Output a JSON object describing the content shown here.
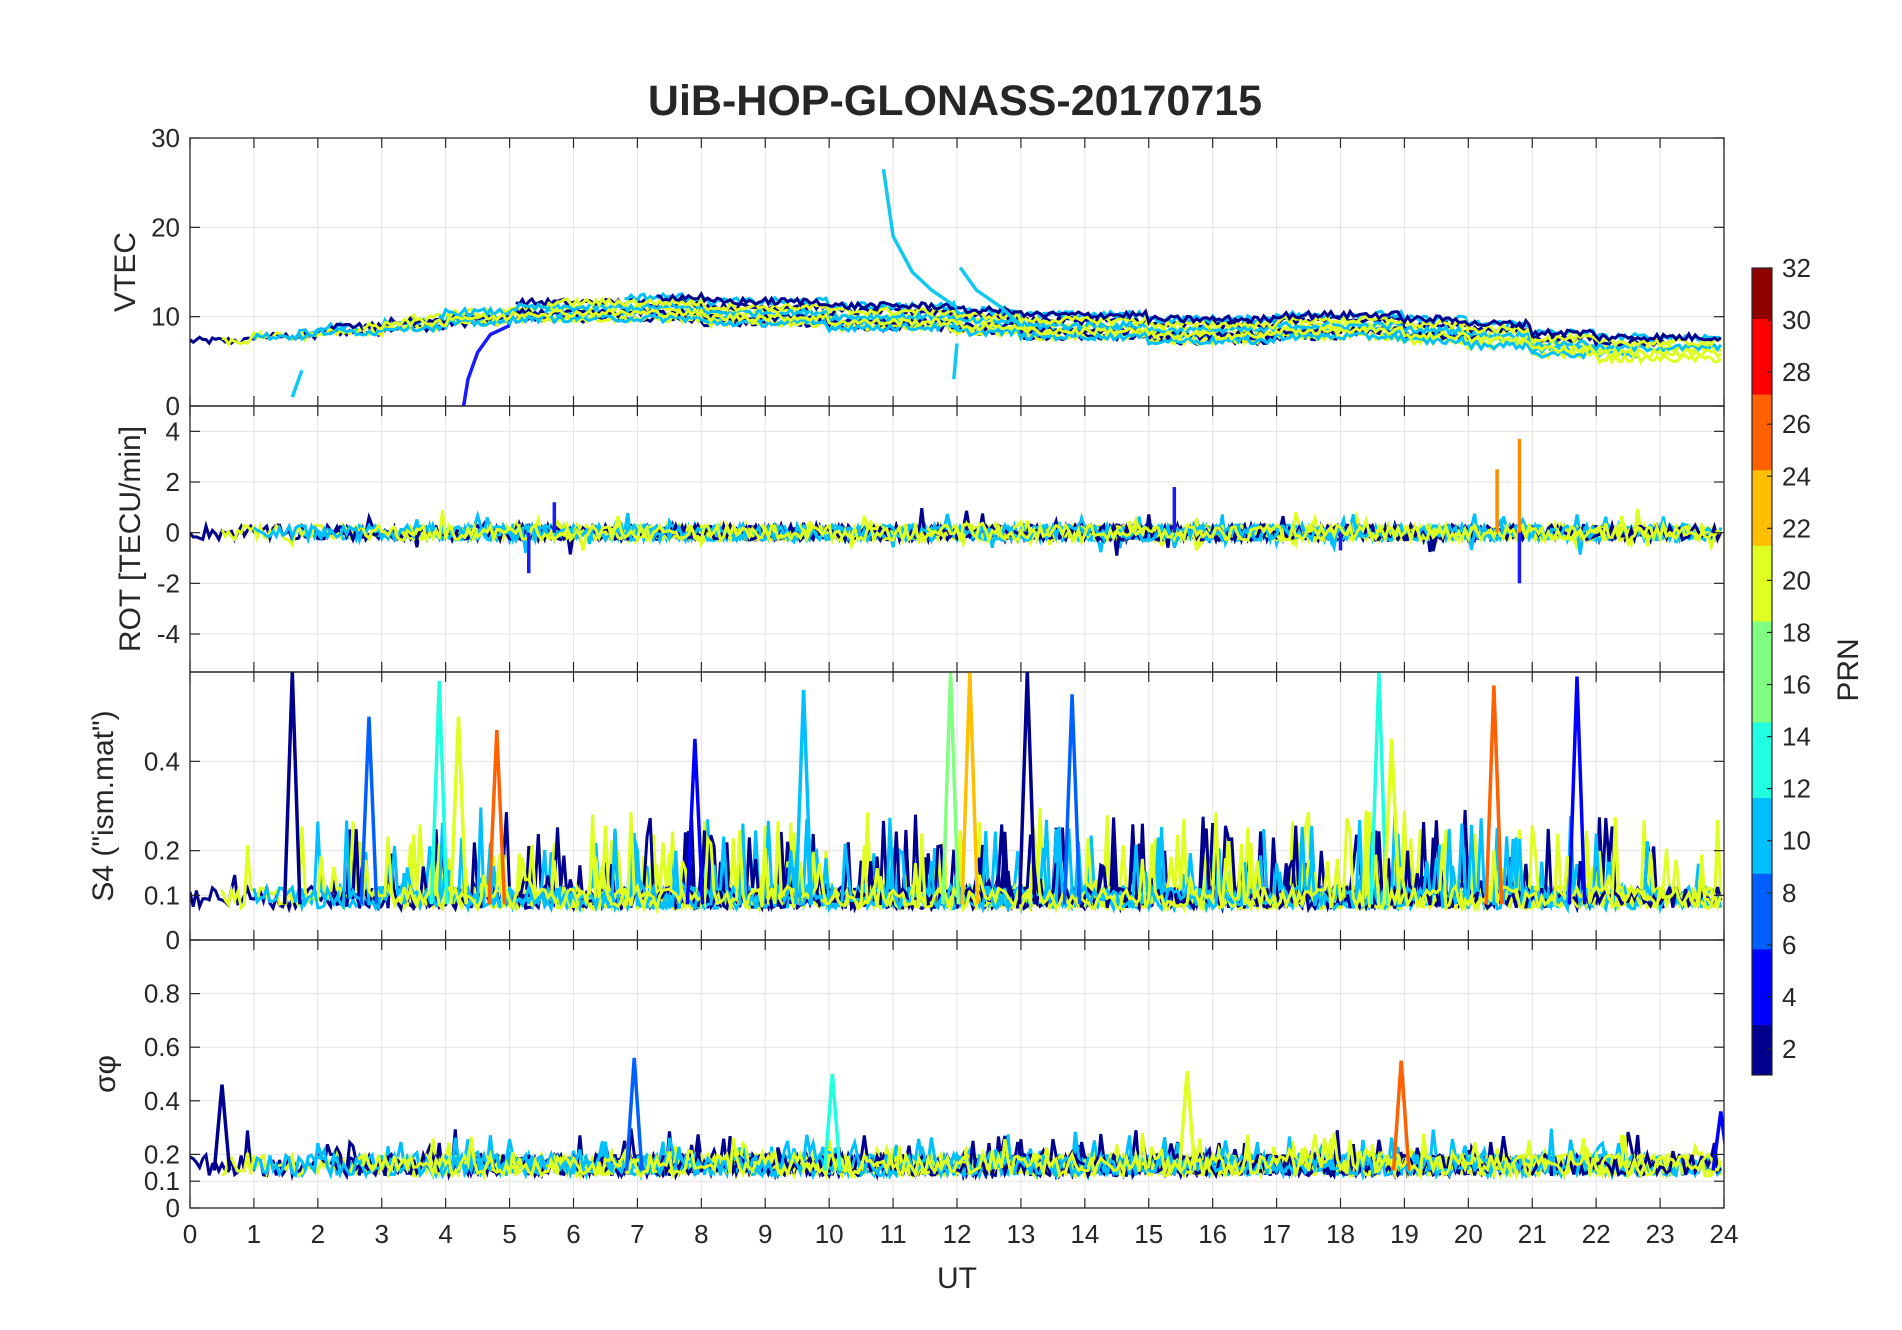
{
  "chart_data": [
    {
      "type": "line",
      "title": "UiB-HOP-GLONASS-20170715",
      "ylabel": "VTEC",
      "xlim": [
        0,
        24
      ],
      "ylim": [
        0,
        30
      ],
      "yticks": [
        "0",
        "10",
        "20",
        "30"
      ],
      "grid": true,
      "series_note_colors": "by PRN (jet colormap)",
      "baseline": {
        "x": [
          0,
          1,
          2,
          3,
          4,
          5,
          6,
          7,
          8,
          9,
          10,
          11,
          12,
          13,
          14,
          15,
          16,
          17,
          18,
          19,
          20,
          21,
          22,
          23,
          24
        ],
        "y": [
          8.5,
          9,
          9.5,
          10,
          10.5,
          11,
          11,
          11,
          10.5,
          10.5,
          10,
          10,
          9.5,
          9,
          9,
          8.5,
          8.5,
          9,
          9,
          8.5,
          8,
          7,
          6.5,
          6.5,
          7
        ]
      },
      "spikes": [
        {
          "x": [
            10.85,
            11.0,
            11.3,
            11.6,
            12.0
          ],
          "y": [
            26.5,
            19,
            15,
            13,
            11
          ]
        },
        {
          "x": [
            12.05,
            12.3,
            12.7,
            13.0
          ],
          "y": [
            15.5,
            13,
            11,
            9
          ]
        },
        {
          "x": [
            4.28,
            4.35,
            4.5,
            4.7,
            5.0
          ],
          "y": [
            0,
            3,
            6,
            8,
            9
          ]
        },
        {
          "x": [
            1.6,
            1.75
          ],
          "y": [
            1,
            4
          ]
        },
        {
          "x": [
            11.95,
            12.0
          ],
          "y": [
            3,
            7
          ]
        }
      ]
    },
    {
      "type": "line",
      "ylabel": "ROT [TECU/min]",
      "xlim": [
        0,
        24
      ],
      "ylim": [
        -5.5,
        5
      ],
      "yticks": [
        "-4",
        "-2",
        "0",
        "2",
        "4"
      ],
      "grid": true,
      "spikes": [
        {
          "x": 20.8,
          "y": 3.7
        },
        {
          "x": 20.8,
          "y": -2.0
        },
        {
          "x": 20.45,
          "y": 2.5
        },
        {
          "x": 15.4,
          "y": 1.8
        },
        {
          "x": 5.3,
          "y": -1.6
        },
        {
          "x": 5.7,
          "y": 1.2
        },
        {
          "x": 18.0,
          "y": -0.7
        }
      ]
    },
    {
      "type": "line",
      "ylabel": "S4 (\"ism.mat\")",
      "xlim": [
        0,
        24
      ],
      "ylim": [
        0,
        0.6
      ],
      "yticks": [
        "0",
        "0.1",
        "0.2",
        "0.4"
      ],
      "grid": true,
      "peaks": [
        {
          "x": 1.6,
          "y": 0.6
        },
        {
          "x": 2.8,
          "y": 0.5
        },
        {
          "x": 3.9,
          "y": 0.58
        },
        {
          "x": 4.2,
          "y": 0.5
        },
        {
          "x": 4.8,
          "y": 0.47
        },
        {
          "x": 7.9,
          "y": 0.45
        },
        {
          "x": 9.6,
          "y": 0.56
        },
        {
          "x": 11.9,
          "y": 0.6
        },
        {
          "x": 12.2,
          "y": 0.6
        },
        {
          "x": 13.1,
          "y": 0.6
        },
        {
          "x": 13.8,
          "y": 0.55
        },
        {
          "x": 18.6,
          "y": 0.6
        },
        {
          "x": 18.8,
          "y": 0.45
        },
        {
          "x": 20.4,
          "y": 0.57
        },
        {
          "x": 21.7,
          "y": 0.59
        }
      ]
    },
    {
      "type": "line",
      "ylabel": "σφ",
      "xlabel": "UT",
      "xlim": [
        0,
        24
      ],
      "ylim": [
        0,
        1
      ],
      "yticks": [
        "0",
        "0.1",
        "0.2",
        "0.4",
        "0.6",
        "0.8"
      ],
      "xticks": [
        "0",
        "1",
        "2",
        "3",
        "4",
        "5",
        "6",
        "7",
        "8",
        "9",
        "10",
        "11",
        "12",
        "13",
        "14",
        "15",
        "16",
        "17",
        "18",
        "19",
        "20",
        "21",
        "22",
        "23",
        "24"
      ],
      "grid": true,
      "peaks": [
        {
          "x": 0.5,
          "y": 0.46
        },
        {
          "x": 6.95,
          "y": 0.56
        },
        {
          "x": 10.05,
          "y": 0.5
        },
        {
          "x": 15.6,
          "y": 0.51
        },
        {
          "x": 18.95,
          "y": 0.55
        },
        {
          "x": 23.95,
          "y": 0.36
        }
      ]
    }
  ],
  "colorbar": {
    "label": "PRN",
    "range": [
      1,
      32
    ],
    "ticks": [
      "2",
      "4",
      "6",
      "8",
      "10",
      "12",
      "14",
      "16",
      "18",
      "20",
      "22",
      "24",
      "26",
      "28",
      "30",
      "32"
    ],
    "colors": [
      "#00008F",
      "#0000FF",
      "#0060FF",
      "#00BFFF",
      "#20FFDF",
      "#80FF80",
      "#DFFF20",
      "#FFBF00",
      "#FF6000",
      "#FF0000",
      "#8F0000"
    ]
  }
}
